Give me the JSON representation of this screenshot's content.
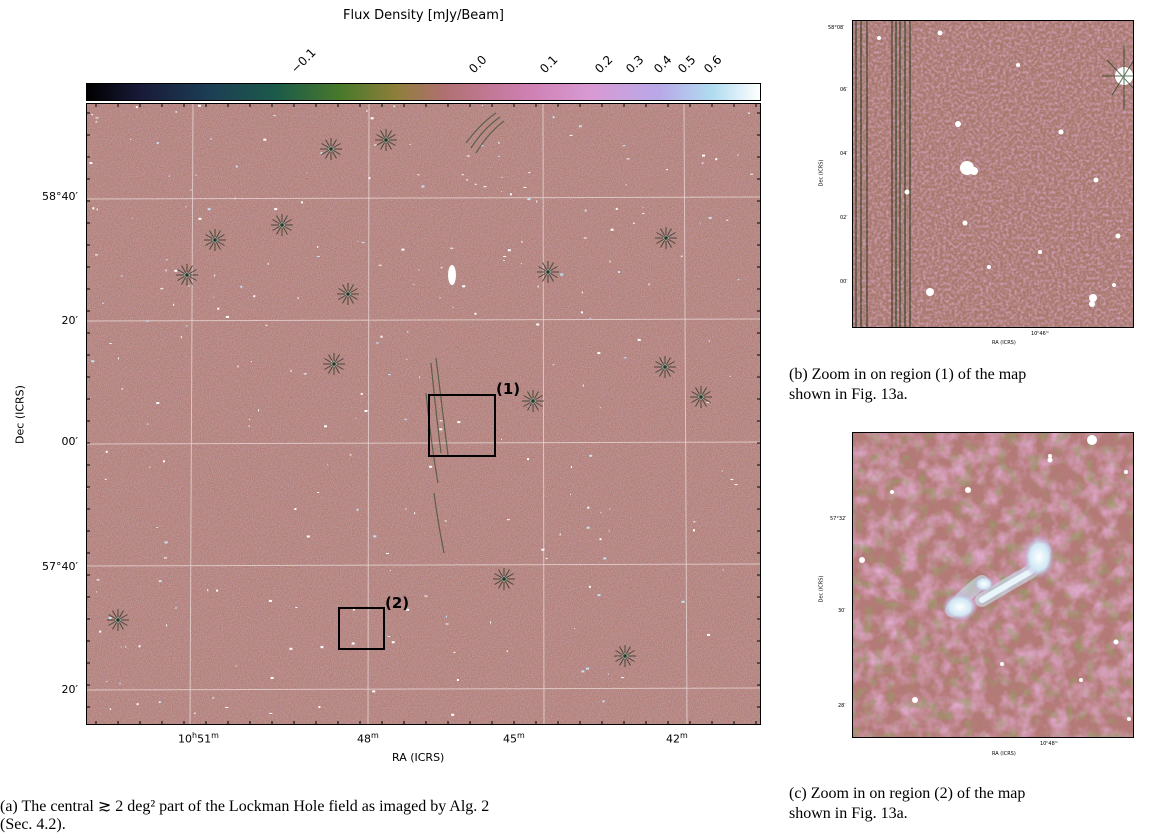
{
  "main_map": {
    "colorbar": {
      "title": "Flux Density [mJy/Beam]",
      "ticks": [
        "−0.1",
        "0.0",
        "0.1",
        "0.2",
        "0.3",
        "0.4",
        "0.5",
        "0.6"
      ]
    },
    "x_axis": {
      "label": "RA (ICRS)",
      "ticks": [
        {
          "h": "10",
          "hsup": "h",
          "v": "51",
          "vsup": "m"
        },
        {
          "v": "48",
          "vsup": "m"
        },
        {
          "v": "45",
          "vsup": "m"
        },
        {
          "v": "42",
          "vsup": "m"
        }
      ]
    },
    "y_axis": {
      "label": "Dec (ICRS)",
      "ticks": [
        "58°40′",
        "20′",
        "00′",
        "57°40′",
        "20′"
      ]
    },
    "regions": [
      "(1)",
      "(2)"
    ]
  },
  "panel_b": {
    "y_axis": {
      "label": "Dec (ICRS)",
      "ticks": [
        "58°08′",
        "06′",
        "04′",
        "02′",
        "00′"
      ]
    },
    "x_axis": {
      "label": "RA (ICRS)",
      "tick": "10ʰ46ᵐ"
    }
  },
  "panel_c": {
    "y_axis": {
      "label": "Dec (ICRS)",
      "ticks": [
        "57°32′",
        "30′",
        "28′"
      ]
    },
    "x_axis": {
      "label": "RA (ICRS)",
      "tick": "10ʰ48ᵐ"
    }
  },
  "captions": {
    "a_line1": "(a)  The central ≳ 2 deg² part of the Lockman Hole field as imaged by Alg. 2",
    "a_line2": "(Sec. 4.2).",
    "b_line1": "(b)  Zoom in on region (1) of the map",
    "b_line2": "shown in Fig. 13a.",
    "c_line1": "(c) Zoom in on region (2) of the map",
    "c_line2": "shown in Fig. 13a."
  },
  "colors": {
    "background": "#b57878",
    "cmap": [
      "#000000",
      "#1a1e3e",
      "#1b5a4a",
      "#4a7a2a",
      "#8f7e3a",
      "#b07070",
      "#d080b8",
      "#b8a0e0",
      "#a8d8f0",
      "#ffffff"
    ]
  }
}
